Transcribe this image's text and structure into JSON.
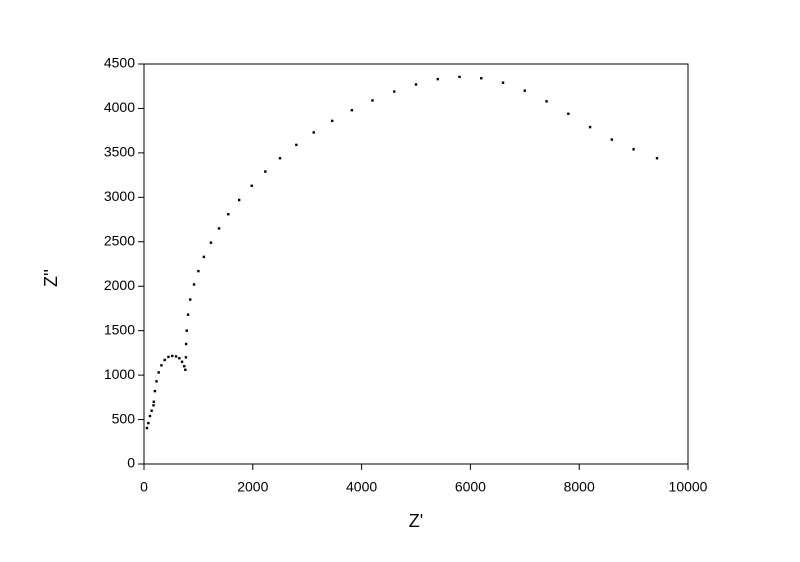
{
  "chart_data": {
    "type": "scatter",
    "x_label": "Z'",
    "y_label": "Z''",
    "color": "#000000",
    "x": [
      55,
      80,
      110,
      140,
      175,
      180,
      200,
      230,
      270,
      320,
      380,
      450,
      520,
      590,
      650,
      700,
      740,
      760,
      770,
      775,
      785,
      810,
      850,
      920,
      1000,
      1100,
      1230,
      1380,
      1550,
      1750,
      1980,
      2230,
      2500,
      2800,
      3120,
      3460,
      3820,
      4200,
      4600,
      5000,
      5400,
      5800,
      6200,
      6600,
      7000,
      7400,
      7800,
      8200,
      8600,
      9000,
      9430
    ],
    "values": [
      405,
      460,
      540,
      600,
      660,
      700,
      820,
      930,
      1030,
      1110,
      1170,
      1205,
      1215,
      1210,
      1190,
      1150,
      1100,
      1060,
      1200,
      1350,
      1500,
      1680,
      1850,
      2020,
      2170,
      2330,
      2490,
      2650,
      2810,
      2970,
      3130,
      3290,
      3440,
      3590,
      3730,
      3860,
      3980,
      4090,
      4190,
      4270,
      4330,
      4355,
      4340,
      4290,
      4200,
      4080,
      3940,
      3790,
      3650,
      3540,
      3440
    ],
    "xlim": [
      0,
      10000
    ],
    "xticks": [
      0,
      2000,
      4000,
      6000,
      8000,
      10000
    ],
    "ylim": [
      0,
      4500
    ],
    "yticks": [
      0,
      500,
      1000,
      1500,
      2000,
      2500,
      3000,
      3500,
      4000,
      4500
    ]
  }
}
